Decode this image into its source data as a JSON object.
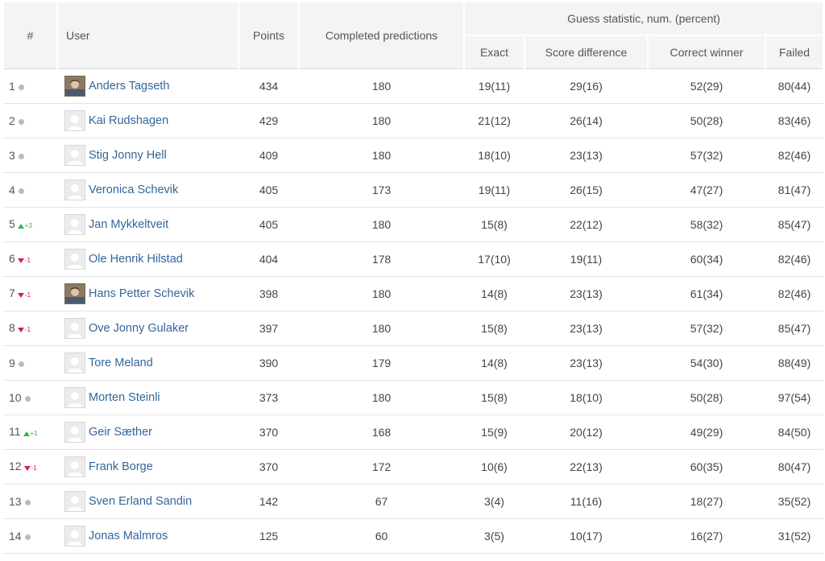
{
  "header": {
    "rank": "#",
    "user": "User",
    "points": "Points",
    "completed": "Completed predictions",
    "guess_group": "Guess statistic, num. (percent)",
    "exact": "Exact",
    "score_difference": "Score difference",
    "correct_winner": "Correct winner",
    "failed": "Failed"
  },
  "colors": {
    "link": "#33669a",
    "up": "#2fb84a",
    "down": "#d6204a",
    "neutral": "#bbbbbb"
  },
  "rows": [
    {
      "rank": "1",
      "change": "none",
      "change_label": "",
      "name": "Anders Tagseth",
      "avatar": "photo",
      "points": "434",
      "completed": "180",
      "exact": "19(11)",
      "diff": "29(16)",
      "winner": "52(29)",
      "failed": "80(44)"
    },
    {
      "rank": "2",
      "change": "none",
      "change_label": "",
      "name": "Kai Rudshagen",
      "avatar": "placeholder",
      "points": "429",
      "completed": "180",
      "exact": "21(12)",
      "diff": "26(14)",
      "winner": "50(28)",
      "failed": "83(46)"
    },
    {
      "rank": "3",
      "change": "none",
      "change_label": "",
      "name": "Stig Jonny Hell",
      "avatar": "placeholder",
      "points": "409",
      "completed": "180",
      "exact": "18(10)",
      "diff": "23(13)",
      "winner": "57(32)",
      "failed": "82(46)"
    },
    {
      "rank": "4",
      "change": "none",
      "change_label": "",
      "name": "Veronica Schevik",
      "avatar": "placeholder",
      "points": "405",
      "completed": "173",
      "exact": "19(11)",
      "diff": "26(15)",
      "winner": "47(27)",
      "failed": "81(47)"
    },
    {
      "rank": "5",
      "change": "up",
      "change_label": "+3",
      "name": "Jan Mykkeltveit",
      "avatar": "placeholder",
      "points": "405",
      "completed": "180",
      "exact": "15(8)",
      "diff": "22(12)",
      "winner": "58(32)",
      "failed": "85(47)"
    },
    {
      "rank": "6",
      "change": "down",
      "change_label": "-1",
      "name": "Ole Henrik Hilstad",
      "avatar": "placeholder",
      "points": "404",
      "completed": "178",
      "exact": "17(10)",
      "diff": "19(11)",
      "winner": "60(34)",
      "failed": "82(46)"
    },
    {
      "rank": "7",
      "change": "down",
      "change_label": "-1",
      "name": "Hans Petter Schevik",
      "avatar": "photo",
      "points": "398",
      "completed": "180",
      "exact": "14(8)",
      "diff": "23(13)",
      "winner": "61(34)",
      "failed": "82(46)"
    },
    {
      "rank": "8",
      "change": "down",
      "change_label": "-1",
      "name": "Ove Jonny Gulaker",
      "avatar": "placeholder",
      "points": "397",
      "completed": "180",
      "exact": "15(8)",
      "diff": "23(13)",
      "winner": "57(32)",
      "failed": "85(47)"
    },
    {
      "rank": "9",
      "change": "none",
      "change_label": "",
      "name": "Tore Meland",
      "avatar": "placeholder",
      "points": "390",
      "completed": "179",
      "exact": "14(8)",
      "diff": "23(13)",
      "winner": "54(30)",
      "failed": "88(49)"
    },
    {
      "rank": "10",
      "change": "none",
      "change_label": "",
      "name": "Morten Steinli",
      "avatar": "placeholder",
      "points": "373",
      "completed": "180",
      "exact": "15(8)",
      "diff": "18(10)",
      "winner": "50(28)",
      "failed": "97(54)"
    },
    {
      "rank": "11",
      "change": "up",
      "change_label": "+1",
      "name": "Geir Sæther",
      "avatar": "placeholder",
      "points": "370",
      "completed": "168",
      "exact": "15(9)",
      "diff": "20(12)",
      "winner": "49(29)",
      "failed": "84(50)"
    },
    {
      "rank": "12",
      "change": "down",
      "change_label": "-1",
      "name": "Frank Borge",
      "avatar": "placeholder",
      "points": "370",
      "completed": "172",
      "exact": "10(6)",
      "diff": "22(13)",
      "winner": "60(35)",
      "failed": "80(47)"
    },
    {
      "rank": "13",
      "change": "none",
      "change_label": "",
      "name": "Sven Erland Sandin",
      "avatar": "placeholder",
      "points": "142",
      "completed": "67",
      "exact": "3(4)",
      "diff": "11(16)",
      "winner": "18(27)",
      "failed": "35(52)"
    },
    {
      "rank": "14",
      "change": "none",
      "change_label": "",
      "name": "Jonas Malmros",
      "avatar": "placeholder",
      "points": "125",
      "completed": "60",
      "exact": "3(5)",
      "diff": "10(17)",
      "winner": "16(27)",
      "failed": "31(52)"
    }
  ]
}
